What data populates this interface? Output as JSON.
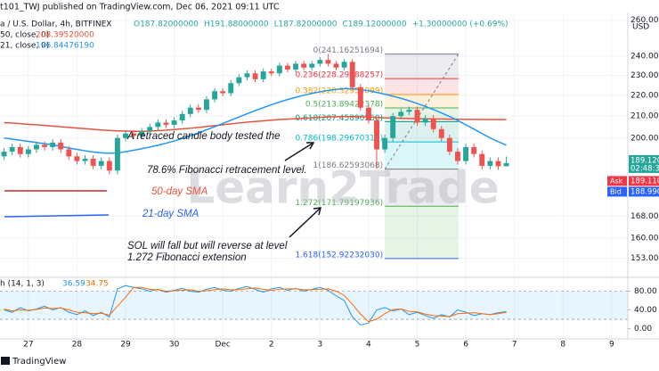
{
  "chart_data": {
    "type": "candlestick",
    "attribution": "t101_TWJ published on TradingView.com, Dec 06, 2021 09:11 UTC",
    "symbol": "a / U.S. Dollar, 4h, BITFINEX",
    "ohlc_readout": [
      "O187.82000000",
      "H191.88000000",
      "L187.82000000",
      "C189.12000000",
      "+1.30000000 (+0.69%)"
    ],
    "currency": "USD",
    "up_color": "#26a69a",
    "down_color": "#ef5350",
    "open": [
      192,
      194,
      196,
      193,
      195,
      197,
      196,
      198,
      195,
      192,
      190,
      191,
      188,
      190,
      186,
      200,
      202,
      201,
      203,
      205,
      207,
      206,
      208,
      211,
      214,
      213,
      218,
      222,
      221,
      226,
      229,
      231,
      228,
      232,
      231,
      235,
      233,
      236,
      234,
      236,
      238,
      236,
      234,
      237,
      224,
      214,
      208,
      195,
      200,
      210,
      212,
      213,
      207,
      209,
      204,
      200,
      194,
      190,
      196,
      193,
      188,
      190,
      187.82
    ],
    "high": [
      195.5,
      197.5,
      197.5,
      196.5,
      198.5,
      198.5,
      199.5,
      199.5,
      196.5,
      193.5,
      192.5,
      192.5,
      191.5,
      191.5,
      201.5,
      203.5,
      203.5,
      204.5,
      206.5,
      208.5,
      208.5,
      209.5,
      212.5,
      215.5,
      215.5,
      219.5,
      223.5,
      223.5,
      227.5,
      230.5,
      232.5,
      232.5,
      233.5,
      233.5,
      236.5,
      236.5,
      237.5,
      237.5,
      237.5,
      239.5,
      241.16251694,
      237.5,
      238.5,
      238.5,
      225.5,
      215.5,
      209.5,
      201.5,
      211.5,
      213.5,
      214.5,
      214.5,
      210.5,
      210.5,
      205.5,
      201.5,
      195.5,
      197.5,
      197.5,
      194.5,
      191.5,
      191.5,
      191.88
    ],
    "low": [
      190.5,
      192.5,
      191.5,
      191.5,
      193.5,
      194.5,
      194.5,
      193.5,
      190.5,
      188.5,
      188.5,
      186.5,
      186.5,
      184.5,
      184.5,
      198.5,
      199.5,
      199.5,
      201.5,
      203.5,
      204.5,
      204.5,
      206.5,
      209.5,
      211.5,
      211.5,
      216.5,
      219.5,
      219.5,
      224.5,
      227.5,
      226.5,
      226.5,
      229.5,
      229.5,
      231.5,
      231.5,
      232.5,
      232.5,
      234.5,
      234.5,
      232.5,
      232.5,
      222.5,
      212.5,
      206.5,
      186.62593068,
      193.5,
      198.5,
      208.5,
      210.5,
      205.5,
      205.5,
      202.5,
      198.5,
      192.5,
      188.5,
      188.5,
      191.5,
      186.5,
      186.5,
      186.3,
      187.82
    ],
    "close": [
      194,
      196,
      193,
      195,
      197,
      196,
      198,
      195,
      192,
      190,
      191,
      188,
      190,
      186,
      200,
      202,
      201,
      203,
      205,
      207,
      206,
      208,
      211,
      214,
      213,
      218,
      222,
      221,
      226,
      229,
      231,
      228,
      232,
      231,
      235,
      233,
      236,
      234,
      236,
      238,
      236,
      234,
      237,
      224,
      214,
      208,
      195,
      200,
      210,
      212,
      213,
      207,
      209,
      204,
      200,
      194,
      190,
      196,
      193,
      188,
      190,
      187.82,
      189.12
    ],
    "series": [
      {
        "name": "50, close, 0)",
        "value_label": "208.39520000",
        "color": "#e5533d",
        "values": [
          207,
          206.8,
          206.5,
          206.2,
          206,
          205.7,
          205.4,
          205.1,
          204.8,
          204.5,
          204.2,
          203.9,
          203.6,
          203.4,
          203.2,
          203.1,
          203,
          203,
          203.1,
          203.3,
          203.5,
          203.8,
          204.1,
          204.4,
          204.8,
          205.2,
          205.6,
          206,
          206.4,
          206.8,
          207.2,
          207.5,
          207.8,
          208.1,
          208.4,
          208.6,
          208.8,
          209,
          209.2,
          209.4,
          209.6,
          209.7,
          209.8,
          209.8,
          209.7,
          209.6,
          209.4,
          209.2,
          209.1,
          209,
          208.9,
          208.8,
          208.8,
          208.7,
          208.7,
          208.6,
          208.6,
          208.5,
          208.5,
          208.4,
          208.4,
          208.4,
          208.3952
        ]
      },
      {
        "name": "21, close, 0)",
        "value_label": "196.84476190",
        "color": "#2196f3",
        "values": [
          200,
          199.5,
          199,
          198.5,
          198,
          197.5,
          197,
          196.3,
          195.6,
          195,
          194.4,
          193.9,
          193.5,
          193.3,
          193.5,
          194,
          194.6,
          195.3,
          196,
          196.8,
          197.7,
          198.7,
          199.8,
          201,
          202.3,
          203.7,
          205.1,
          206.6,
          208.1,
          209.6,
          211.1,
          212.6,
          214,
          215.4,
          216.7,
          217.9,
          219,
          220,
          220.9,
          221.7,
          222.4,
          222.9,
          223.2,
          223.2,
          222.8,
          222.2,
          221.4,
          220.5,
          219.5,
          218.5,
          217.3,
          216,
          214.6,
          213.1,
          211.5,
          209.8,
          208,
          206,
          204,
          202,
          200,
          198.4,
          196.8447619
        ]
      }
    ],
    "xlim": [
      -0.5,
      77
    ],
    "xticks": [
      {
        "value": 3,
        "label": "27"
      },
      {
        "value": 9,
        "label": "28"
      },
      {
        "value": 15,
        "label": "29"
      },
      {
        "value": 21,
        "label": "30"
      },
      {
        "value": 27,
        "label": "Dec"
      },
      {
        "value": 33,
        "label": "2"
      },
      {
        "value": 39,
        "label": "3"
      },
      {
        "value": 45,
        "label": "4"
      },
      {
        "value": 51,
        "label": "5"
      },
      {
        "value": 57,
        "label": "6"
      },
      {
        "value": 63,
        "label": "7"
      },
      {
        "value": 69,
        "label": "8"
      },
      {
        "value": 75,
        "label": "9"
      }
    ],
    "ylim": [
      147.5,
      263.5
    ],
    "log_scale": true,
    "grid": true,
    "yticks": [
      {
        "value": 260,
        "label": "260.00000"
      },
      {
        "value": 240,
        "label": "240.00000"
      },
      {
        "value": 230,
        "label": "230.00000"
      },
      {
        "value": 220,
        "label": "220.00000"
      },
      {
        "value": 210,
        "label": "210.00000"
      },
      {
        "value": 200,
        "label": "200.00000"
      },
      {
        "value": 168,
        "label": "168.00000"
      },
      {
        "value": 160,
        "label": "160.00000"
      },
      {
        "value": 153,
        "label": "153.00000"
      }
    ],
    "fib_levels": [
      {
        "label": "0(241.16251694)",
        "value": 241.16251694,
        "color": "#787b86"
      },
      {
        "label": "0.236(228.29188257)",
        "value": 228.29188257,
        "color": "#f23645"
      },
      {
        "label": "0.382(220.32954099)",
        "value": 220.32954099,
        "color": "#ff9800"
      },
      {
        "label": "0.5(213.89422378)",
        "value": 213.89422378,
        "color": "#4caf50"
      },
      {
        "label": "0.618(207.45890560)",
        "value": 207.4589056,
        "color": "#089981"
      },
      {
        "label": "0.786(198.29670310)",
        "value": 198.2967031,
        "color": "#00bcd4"
      },
      {
        "label": "1(186.62593068)",
        "value": 186.62593068,
        "color": "#787b86"
      },
      {
        "label": "1.272(171.79197936)",
        "value": 171.79197936,
        "color": "#4caf50"
      },
      {
        "label": "1.618(152.92232030)",
        "value": 152.9223203,
        "color": "#2962ff"
      }
    ],
    "last_price": {
      "label": "189.12000",
      "countdown": "02:48:39",
      "color": "#26a69a"
    },
    "quotes": [
      {
        "name": "Ask",
        "price": "189.11000",
        "color": "#f23645"
      },
      {
        "name": "Bid",
        "price": "188.99000",
        "color": "#2962ff"
      }
    ],
    "annotations": [
      "A retraced candle body tested the",
      "78.6% Fibonacci retracement level.",
      "50-day SMA",
      "21-day SMA",
      "SOL will fall but will reverse at level",
      "1.272 Fibonacci extension"
    ],
    "watermark": "Learn2Trade",
    "stochastic": {
      "title": "h (14, 1, 3)",
      "ylim": [
        -18,
        100
      ],
      "yticks": [
        {
          "value": 80,
          "label": "80.00"
        },
        {
          "value": 40,
          "label": "40.00"
        },
        {
          "value": 0,
          "label": "0.00"
        }
      ],
      "band": [
        20,
        80
      ],
      "series": [
        {
          "value_label": "36.59",
          "color": "#2196f3",
          "values": [
            40,
            35,
            45,
            38,
            42,
            48,
            40,
            45,
            35,
            30,
            38,
            28,
            35,
            25,
            85,
            92,
            88,
            85,
            80,
            84,
            78,
            82,
            86,
            80,
            78,
            84,
            88,
            82,
            80,
            86,
            90,
            84,
            78,
            85,
            88,
            82,
            86,
            80,
            84,
            88,
            82,
            70,
            60,
            25,
            8,
            12,
            40,
            45,
            38,
            42,
            30,
            35,
            28,
            22,
            30,
            25,
            40,
            35,
            28,
            32,
            30,
            34,
            36.59
          ]
        },
        {
          "value_label": "34.75",
          "color": "#ff6d00",
          "values": [
            42,
            38,
            40,
            39,
            41,
            44,
            43,
            44,
            40,
            35,
            34,
            32,
            33,
            29,
            48,
            67,
            88,
            88,
            84,
            83,
            80,
            81,
            82,
            83,
            80,
            81,
            83,
            85,
            83,
            83,
            85,
            87,
            84,
            82,
            84,
            85,
            85,
            83,
            83,
            84,
            85,
            80,
            71,
            52,
            31,
            15,
            20,
            32,
            41,
            42,
            37,
            36,
            31,
            28,
            27,
            26,
            32,
            33,
            34,
            32,
            30,
            32,
            34.75
          ]
        }
      ]
    },
    "footer": "TradingView"
  }
}
